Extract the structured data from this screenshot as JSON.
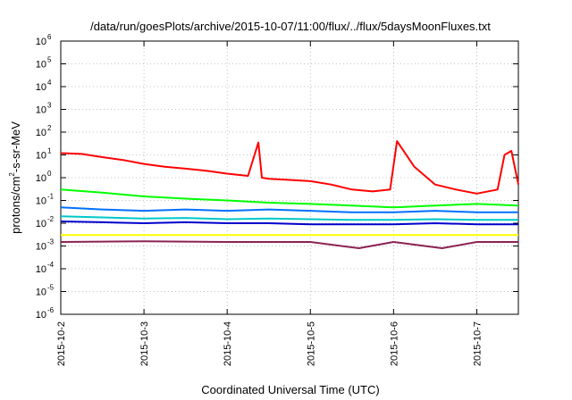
{
  "chart_data": {
    "type": "line",
    "title": "/data/run/goesPlots/archive/2015-10-07/11:00/flux/../flux/5daysMoonFluxes.txt",
    "xlabel": "Coordinated Universal Time (UTC)",
    "ylabel": "protons/cm²-s-sr-MeV",
    "ylabel_parts": {
      "pre": "protons/cm",
      "sup": "2",
      "post": "-s-sr-MeV"
    },
    "y_scale": "log",
    "ylim": [
      1e-06,
      1000000.0
    ],
    "xlim": [
      "2015-10-02 00:00",
      "2015-10-07 12:00"
    ],
    "grid": true,
    "y_ticks": [
      {
        "base": "10",
        "exp": "-6",
        "value": 1e-06
      },
      {
        "base": "10",
        "exp": "-5",
        "value": 1e-05
      },
      {
        "base": "10",
        "exp": "-4",
        "value": 0.0001
      },
      {
        "base": "10",
        "exp": "-3",
        "value": 0.001
      },
      {
        "base": "10",
        "exp": "-2",
        "value": 0.01
      },
      {
        "base": "10",
        "exp": "-1",
        "value": 0.1
      },
      {
        "base": "10",
        "exp": "0",
        "value": 1.0
      },
      {
        "base": "10",
        "exp": "1",
        "value": 10.0
      },
      {
        "base": "10",
        "exp": "2",
        "value": 100.0
      },
      {
        "base": "10",
        "exp": "3",
        "value": 1000.0
      },
      {
        "base": "10",
        "exp": "4",
        "value": 10000.0
      },
      {
        "base": "10",
        "exp": "5",
        "value": 100000.0
      },
      {
        "base": "10",
        "exp": "6",
        "value": 1000000.0
      }
    ],
    "x_ticks": [
      "2015-10-2",
      "2015-10-3",
      "2015-10-4",
      "2015-10-5",
      "2015-10-6",
      "2015-10-7"
    ],
    "series": [
      {
        "color": "#ff0000",
        "width": 2,
        "points": [
          [
            "2015-10-02 00:00",
            12
          ],
          [
            "2015-10-02 06:00",
            11
          ],
          [
            "2015-10-02 12:00",
            8
          ],
          [
            "2015-10-02 18:00",
            6
          ],
          [
            "2015-10-03 00:00",
            4
          ],
          [
            "2015-10-03 06:00",
            3
          ],
          [
            "2015-10-03 12:00",
            2.5
          ],
          [
            "2015-10-03 18:00",
            2
          ],
          [
            "2015-10-04 00:00",
            1.5
          ],
          [
            "2015-10-04 06:00",
            1.2
          ],
          [
            "2015-10-04 09:00",
            35
          ],
          [
            "2015-10-04 10:00",
            1
          ],
          [
            "2015-10-04 12:00",
            0.9
          ],
          [
            "2015-10-04 18:00",
            0.8
          ],
          [
            "2015-10-05 00:00",
            0.7
          ],
          [
            "2015-10-05 06:00",
            0.5
          ],
          [
            "2015-10-05 12:00",
            0.3
          ],
          [
            "2015-10-05 18:00",
            0.25
          ],
          [
            "2015-10-05 23:00",
            0.3
          ],
          [
            "2015-10-06 01:00",
            40
          ],
          [
            "2015-10-06 06:00",
            3
          ],
          [
            "2015-10-06 12:00",
            0.5
          ],
          [
            "2015-10-06 18:00",
            0.3
          ],
          [
            "2015-10-07 00:00",
            0.2
          ],
          [
            "2015-10-07 06:00",
            0.3
          ],
          [
            "2015-10-07 08:00",
            10
          ],
          [
            "2015-10-07 10:00",
            15
          ],
          [
            "2015-10-07 12:00",
            0.5
          ]
        ]
      },
      {
        "color": "#00ff00",
        "width": 2,
        "points": [
          [
            "2015-10-02 00:00",
            0.3
          ],
          [
            "2015-10-02 12:00",
            0.22
          ],
          [
            "2015-10-03 00:00",
            0.15
          ],
          [
            "2015-10-03 12:00",
            0.12
          ],
          [
            "2015-10-04 00:00",
            0.1
          ],
          [
            "2015-10-04 12:00",
            0.08
          ],
          [
            "2015-10-05 00:00",
            0.07
          ],
          [
            "2015-10-05 12:00",
            0.06
          ],
          [
            "2015-10-06 00:00",
            0.05
          ],
          [
            "2015-10-06 12:00",
            0.06
          ],
          [
            "2015-10-07 00:00",
            0.07
          ],
          [
            "2015-10-07 12:00",
            0.06
          ]
        ]
      },
      {
        "color": "#0070ff",
        "width": 2,
        "points": [
          [
            "2015-10-02 00:00",
            0.05
          ],
          [
            "2015-10-02 12:00",
            0.04
          ],
          [
            "2015-10-03 00:00",
            0.035
          ],
          [
            "2015-10-03 12:00",
            0.04
          ],
          [
            "2015-10-04 00:00",
            0.035
          ],
          [
            "2015-10-04 12:00",
            0.04
          ],
          [
            "2015-10-05 00:00",
            0.035
          ],
          [
            "2015-10-05 12:00",
            0.03
          ],
          [
            "2015-10-06 00:00",
            0.03
          ],
          [
            "2015-10-06 12:00",
            0.035
          ],
          [
            "2015-10-07 00:00",
            0.03
          ],
          [
            "2015-10-07 12:00",
            0.03
          ]
        ]
      },
      {
        "color": "#00c8c8",
        "width": 2,
        "points": [
          [
            "2015-10-02 00:00",
            0.02
          ],
          [
            "2015-10-02 12:00",
            0.018
          ],
          [
            "2015-10-03 00:00",
            0.016
          ],
          [
            "2015-10-03 12:00",
            0.017
          ],
          [
            "2015-10-04 00:00",
            0.015
          ],
          [
            "2015-10-04 12:00",
            0.016
          ],
          [
            "2015-10-05 00:00",
            0.015
          ],
          [
            "2015-10-05 12:00",
            0.014
          ],
          [
            "2015-10-06 00:00",
            0.014
          ],
          [
            "2015-10-06 12:00",
            0.015
          ],
          [
            "2015-10-07 00:00",
            0.014
          ],
          [
            "2015-10-07 12:00",
            0.014
          ]
        ]
      },
      {
        "color": "#0000cc",
        "width": 2,
        "points": [
          [
            "2015-10-02 00:00",
            0.012
          ],
          [
            "2015-10-02 12:00",
            0.011
          ],
          [
            "2015-10-03 00:00",
            0.01
          ],
          [
            "2015-10-03 12:00",
            0.011
          ],
          [
            "2015-10-04 00:00",
            0.01
          ],
          [
            "2015-10-04 12:00",
            0.01
          ],
          [
            "2015-10-05 00:00",
            0.009
          ],
          [
            "2015-10-05 12:00",
            0.009
          ],
          [
            "2015-10-06 00:00",
            0.009
          ],
          [
            "2015-10-06 12:00",
            0.01
          ],
          [
            "2015-10-07 00:00",
            0.009
          ],
          [
            "2015-10-07 12:00",
            0.009
          ]
        ]
      },
      {
        "color": "#ffff00",
        "width": 2,
        "points": [
          [
            "2015-10-02 00:00",
            0.003
          ],
          [
            "2015-10-03 00:00",
            0.003
          ],
          [
            "2015-10-04 00:00",
            0.003
          ],
          [
            "2015-10-05 00:00",
            0.003
          ],
          [
            "2015-10-06 00:00",
            0.003
          ],
          [
            "2015-10-07 00:00",
            0.003
          ],
          [
            "2015-10-07 12:00",
            0.003
          ]
        ]
      },
      {
        "color": "#8b2252",
        "width": 2,
        "points": [
          [
            "2015-10-02 00:00",
            0.0015
          ],
          [
            "2015-10-03 00:00",
            0.0016
          ],
          [
            "2015-10-04 00:00",
            0.0015
          ],
          [
            "2015-10-05 00:00",
            0.0015
          ],
          [
            "2015-10-05 14:00",
            0.0008
          ],
          [
            "2015-10-06 00:00",
            0.0015
          ],
          [
            "2015-10-06 14:00",
            0.0008
          ],
          [
            "2015-10-07 00:00",
            0.0015
          ],
          [
            "2015-10-07 12:00",
            0.0015
          ]
        ]
      }
    ]
  }
}
